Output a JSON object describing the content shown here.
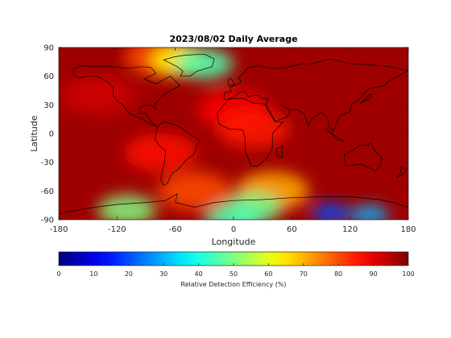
{
  "chart_data": {
    "type": "heatmap",
    "title": "2023/08/02 Daily Average",
    "xlabel": "Longitude",
    "ylabel": "Latitude",
    "xlim": [
      -180,
      180
    ],
    "ylim": [
      -90,
      90
    ],
    "xticks": [
      -180,
      -120,
      -60,
      0,
      60,
      120,
      180
    ],
    "yticks": [
      90,
      60,
      30,
      0,
      -30,
      -60,
      -90
    ],
    "xtick_labels": [
      "-180",
      "-120",
      "-60",
      "0",
      "60",
      "120",
      "180"
    ],
    "ytick_labels": [
      "90",
      "60",
      "30",
      "0",
      "-30",
      "-60",
      "-90"
    ],
    "colorbar": {
      "label": "Relative Detection Efficiency (%)",
      "ticks": [
        0,
        10,
        20,
        30,
        40,
        50,
        60,
        70,
        80,
        90,
        100
      ],
      "tick_labels": [
        "0",
        "10",
        "20",
        "30",
        "40",
        "50",
        "60",
        "70",
        "80",
        "90",
        "100"
      ],
      "range": [
        0,
        100
      ],
      "colormap": "jet",
      "placement": "bottom"
    },
    "field_features": [
      {
        "lon": 0,
        "lat": -90,
        "value": 45
      },
      {
        "lon": 20,
        "lat": -78,
        "value": 48
      },
      {
        "lon": 100,
        "lat": -83,
        "value": 20
      },
      {
        "lon": -110,
        "lat": -80,
        "value": 50
      },
      {
        "lon": 40,
        "lat": -60,
        "value": 70
      },
      {
        "lon": -40,
        "lat": -60,
        "value": 80
      },
      {
        "lon": 140,
        "lat": -85,
        "value": 30
      },
      {
        "lon": -30,
        "lat": 73,
        "value": 45
      },
      {
        "lon": -55,
        "lat": 76,
        "value": 62
      },
      {
        "lon": -75,
        "lat": 80,
        "value": 80
      },
      {
        "lon": 20,
        "lat": 5,
        "value": 85
      },
      {
        "lon": 0,
        "lat": 25,
        "value": 87
      },
      {
        "lon": -75,
        "lat": -20,
        "value": 86
      },
      {
        "lon": -140,
        "lat": 40,
        "value": 92
      }
    ],
    "background_value": 97,
    "grid": false,
    "coastlines": true
  }
}
